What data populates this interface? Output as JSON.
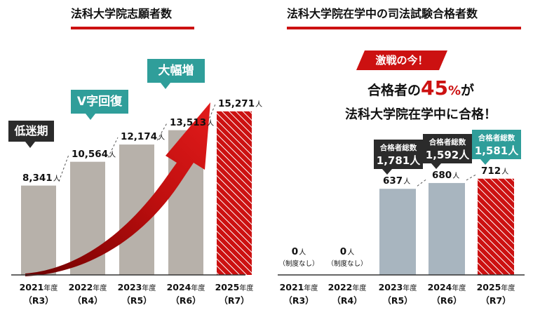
{
  "left_title": "法科大学院志願者数",
  "right_title": "法科大学院在学中の司法試験合格者数",
  "left_callouts": [
    "低迷期",
    "V字回復",
    "大幅増"
  ],
  "right_banner": "激戦の今！",
  "headline": {
    "line1_a": "合格者の",
    "line1_num": "45",
    "line1_pct": "%",
    "line1_b": "が",
    "line2": "法科大学院在学中に合格！"
  },
  "colors": {
    "accent": "#cc1111",
    "gray_bar": "#b7b1aa",
    "blue_bar": "#a8b5bf",
    "callout_dark": "#2b2b2b",
    "callout_teal": "#2f9e9a",
    "banner": "#cc1111"
  },
  "chart_data": [
    {
      "type": "bar",
      "title": "法科大学院志願者数",
      "categories": [
        "2021年度",
        "2022年度",
        "2023年度",
        "2024年度",
        "2025年度"
      ],
      "sub_labels": [
        "（R3）",
        "（R4）",
        "（R5）",
        "（R6）",
        "（R7）"
      ],
      "values": [
        8341,
        10564,
        12174,
        13513,
        15271
      ],
      "value_labels": [
        "8,341",
        "10,564",
        "12,174",
        "13,513",
        "15,271"
      ],
      "unit": "人",
      "ylim": [
        0,
        16500
      ],
      "highlight_index": 4,
      "annotation": "trend arrow rising from 2021 to 2025"
    },
    {
      "type": "bar",
      "title": "法科大学院在学中の司法試験合格者数",
      "categories": [
        "2021年度",
        "2022年度",
        "2023年度",
        "2024年度",
        "2025年度"
      ],
      "sub_labels": [
        "（R3）",
        "（R4）",
        "（R5）",
        "（R6）",
        "（R7）"
      ],
      "values": [
        0,
        0,
        637,
        680,
        712
      ],
      "value_labels": [
        "0",
        "0",
        "637",
        "680",
        "712"
      ],
      "unit": "人",
      "notes": [
        "（制度なし）",
        "（制度なし）",
        "",
        "",
        ""
      ],
      "totals_label": "合格者総数",
      "totals": [
        null,
        null,
        "1,781",
        "1,592",
        "1,581"
      ],
      "ylim": [
        0,
        1100
      ],
      "highlight_index": 4
    }
  ]
}
